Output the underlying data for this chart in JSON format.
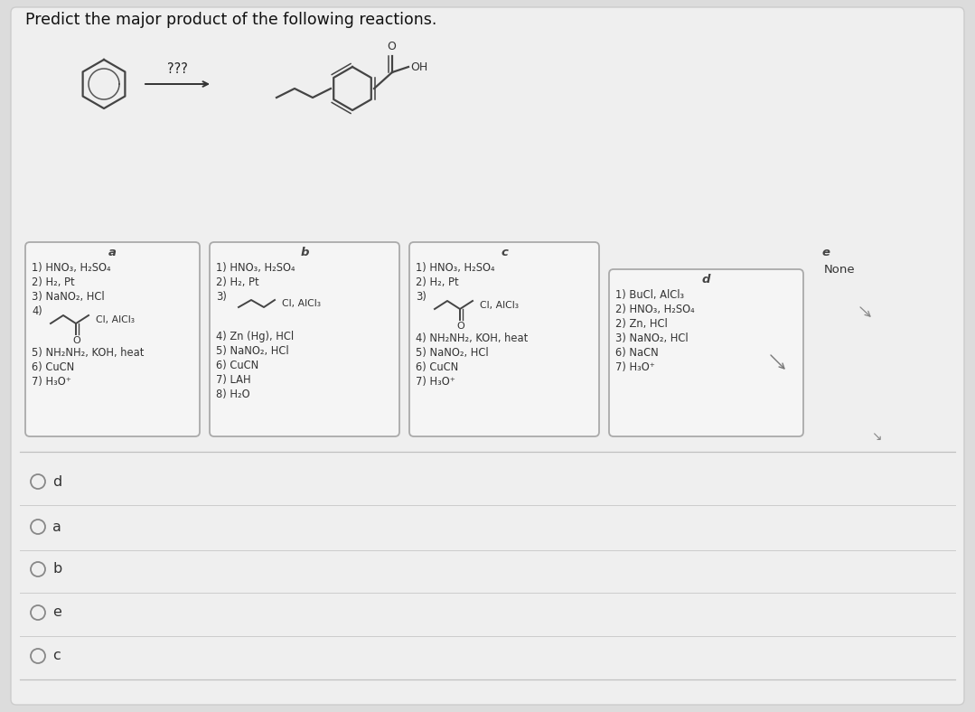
{
  "title": "Predict the major product of the following reactions.",
  "bg_color": "#dcdcdc",
  "white": "#f0f0f0",
  "box_bg": "#f2f2f2",
  "box_edge": "#aaaaaa",
  "text_dark": "#1a1a1a",
  "text_mid": "#333333",
  "answer_choices": [
    "d",
    "a",
    "b",
    "e",
    "c"
  ],
  "box_a_text": [
    "1) HNO₃, H₂SO₄",
    "2) H₂, Pt",
    "3) NaNO₂, HCl",
    "4)"
  ],
  "box_a_text2": [
    "5) NH₂NH₂, KOH, heat",
    "6) CuCN",
    "7) H₃O⁺"
  ],
  "box_b_text": [
    "1) HNO₃, H₂SO₄",
    "2) H₂, Pt",
    "3)"
  ],
  "box_b_text2": [
    "4) Zn (Hg), HCl",
    "5) NaNO₂, HCl",
    "6) CuCN",
    "7) LAH",
    "8) H₂O"
  ],
  "box_c_text": [
    "1) HNO₃, H₂SO₄",
    "2) H₂, Pt",
    "3)"
  ],
  "box_c_text2": [
    "4) NH₂NH₂, KOH, heat",
    "5) NaNO₂, HCl",
    "6) CuCN",
    "7) H₃O⁺"
  ],
  "box_d_text": [
    "1) BuCl, AlCl₃",
    "2) HNO₃, H₂SO₄",
    "2) Zn, HCl",
    "3) NaNO₂, HCl",
    "6) NaCN",
    "7) H₃O⁺"
  ],
  "none_text": "None"
}
